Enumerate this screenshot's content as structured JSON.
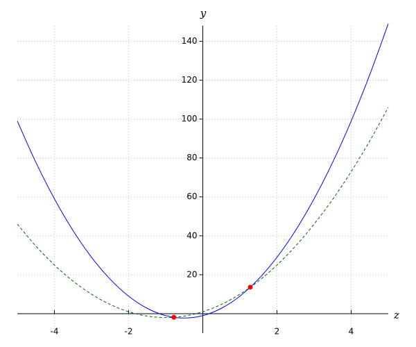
{
  "chart_data": {
    "type": "line",
    "x_label": "z",
    "y_label": "y",
    "x": [
      -5,
      -4.5,
      -4,
      -3.5,
      -3,
      -2.5,
      -2,
      -1.5,
      -1,
      -0.5,
      0,
      0.5,
      1,
      1.5,
      2,
      2.5,
      3,
      3.5,
      4,
      4.5,
      5
    ],
    "series": [
      {
        "color": "#0000ff",
        "dash": false,
        "values": [
          99,
          77.75,
          59,
          42.75,
          29,
          17.75,
          9,
          2.75,
          -1,
          -2.25,
          -1,
          2.75,
          9,
          17.75,
          29,
          42.75,
          59,
          77.75,
          99,
          122.75,
          149
        ]
      },
      {
        "color": "#006400",
        "dash": true,
        "values": [
          46,
          34.75,
          25,
          16.75,
          10,
          4.75,
          1,
          -1.25,
          -2,
          -1.25,
          1,
          4.75,
          10,
          16.75,
          25,
          34.75,
          46,
          58.75,
          73,
          88.75,
          106
        ]
      }
    ],
    "points": {
      "color": "#ff0000",
      "x": [
        -0.78,
        1.28
      ],
      "values": [
        -1.86,
        13.6
      ]
    },
    "xlim": [
      -5,
      5
    ],
    "ylim": [
      -10,
      148
    ],
    "xticks": [
      -4,
      -2,
      2,
      4
    ],
    "yticks": [
      20,
      40,
      60,
      80,
      100,
      120,
      140
    ],
    "grid": true
  }
}
